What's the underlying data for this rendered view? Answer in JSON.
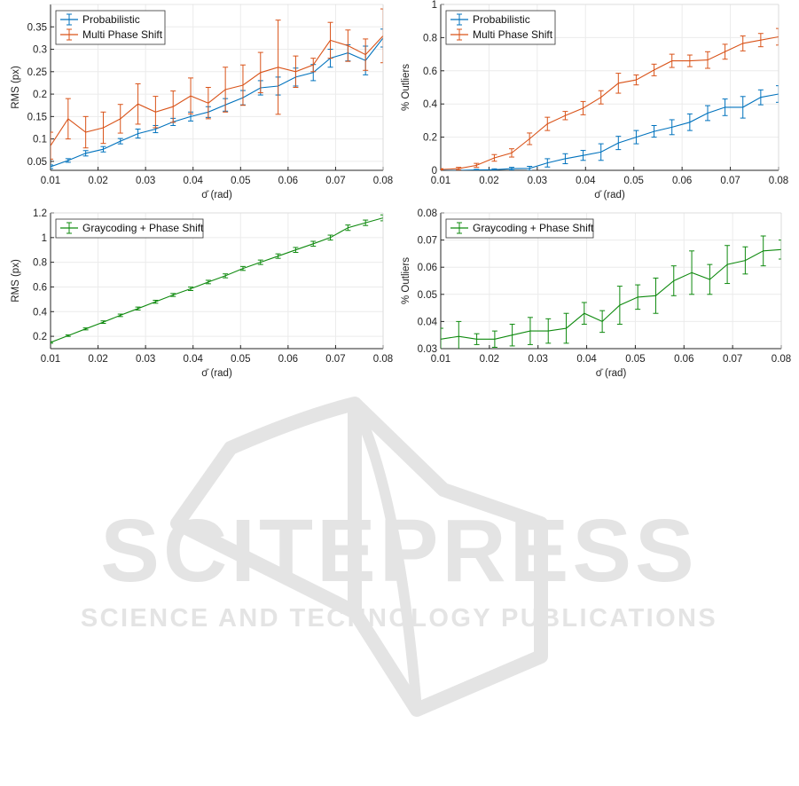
{
  "watermark": {
    "main": "SCITEPRESS",
    "sub": "SCIENCE AND TECHNOLOGY PUBLICATIONS",
    "color": "#e4e4e4"
  },
  "colors": {
    "probabilistic": "#0072BD",
    "multi_phase": "#D95319",
    "graycoding": "#0f8a0f",
    "grid": "#ebebeb",
    "axis": "#262626"
  },
  "chart_data": [
    {
      "type": "line",
      "xlabel": "σ̄ (rad)",
      "ylabel": "RMS (px)",
      "xlim": [
        0.01,
        0.08
      ],
      "ylim": [
        0.03,
        0.4
      ],
      "xticks": [
        0.01,
        0.02,
        0.03,
        0.04,
        0.05,
        0.06,
        0.07,
        0.08
      ],
      "xtick_labels": [
        "0.01",
        "0.02",
        "0.03",
        "0.04",
        "0.05",
        "0.06",
        "0.07",
        "0.08"
      ],
      "yticks": [
        0.05,
        0.1,
        0.15,
        0.2,
        0.25,
        0.3,
        0.35
      ],
      "ytick_labels": [
        "0.05",
        "0.1",
        "0.15",
        "0.2",
        "0.25",
        "0.3",
        "0.35"
      ],
      "grid": true,
      "legend": "top-left",
      "x": [
        0.01,
        0.0137,
        0.0174,
        0.0211,
        0.0247,
        0.0284,
        0.0321,
        0.0358,
        0.0395,
        0.0432,
        0.0468,
        0.0505,
        0.0542,
        0.0579,
        0.0616,
        0.0653,
        0.0689,
        0.0726,
        0.0763,
        0.08
      ],
      "series": [
        {
          "name": "Probabilistic",
          "color": "#0072BD",
          "values": [
            0.038,
            0.052,
            0.068,
            0.077,
            0.095,
            0.112,
            0.122,
            0.138,
            0.15,
            0.16,
            0.176,
            0.192,
            0.214,
            0.218,
            0.238,
            0.248,
            0.28,
            0.292,
            0.275,
            0.325
          ],
          "errors": [
            0.004,
            0.004,
            0.006,
            0.006,
            0.006,
            0.01,
            0.008,
            0.008,
            0.01,
            0.012,
            0.014,
            0.016,
            0.016,
            0.02,
            0.02,
            0.018,
            0.02,
            0.018,
            0.032,
            0.02
          ]
        },
        {
          "name": "Multi Phase Shift",
          "color": "#D95319",
          "values": [
            0.085,
            0.145,
            0.115,
            0.125,
            0.145,
            0.178,
            0.16,
            0.172,
            0.196,
            0.18,
            0.21,
            0.22,
            0.248,
            0.26,
            0.25,
            0.265,
            0.32,
            0.308,
            0.288,
            0.33
          ],
          "errors": [
            0.03,
            0.045,
            0.035,
            0.035,
            0.032,
            0.045,
            0.035,
            0.035,
            0.04,
            0.035,
            0.05,
            0.045,
            0.045,
            0.105,
            0.035,
            0.015,
            0.04,
            0.035,
            0.035,
            0.06
          ]
        }
      ]
    },
    {
      "type": "line",
      "xlabel": "σ̄ (rad)",
      "ylabel": "% Outliers",
      "xlim": [
        0.01,
        0.08
      ],
      "ylim": [
        0,
        1
      ],
      "xticks": [
        0.01,
        0.02,
        0.03,
        0.04,
        0.05,
        0.06,
        0.07,
        0.08
      ],
      "xtick_labels": [
        "0.01",
        "0.02",
        "0.03",
        "0.04",
        "0.05",
        "0.06",
        "0.07",
        "0.08"
      ],
      "yticks": [
        0,
        0.2,
        0.4,
        0.6,
        0.8,
        1
      ],
      "ytick_labels": [
        "0",
        "0.2",
        "0.4",
        "0.6",
        "0.8",
        "1"
      ],
      "grid": true,
      "legend": "top-left",
      "x": [
        0.01,
        0.0137,
        0.0174,
        0.0211,
        0.0247,
        0.0284,
        0.0321,
        0.0358,
        0.0395,
        0.0432,
        0.0468,
        0.0505,
        0.0542,
        0.0579,
        0.0616,
        0.0653,
        0.0689,
        0.0726,
        0.0763,
        0.08
      ],
      "series": [
        {
          "name": "Probabilistic",
          "color": "#0072BD",
          "values": [
            0.0,
            0.0,
            0.002,
            0.004,
            0.01,
            0.012,
            0.045,
            0.07,
            0.09,
            0.11,
            0.165,
            0.2,
            0.235,
            0.26,
            0.29,
            0.345,
            0.38,
            0.38,
            0.44,
            0.46
          ],
          "errors": [
            0.003,
            0.003,
            0.004,
            0.005,
            0.008,
            0.012,
            0.025,
            0.03,
            0.03,
            0.05,
            0.04,
            0.04,
            0.035,
            0.045,
            0.05,
            0.045,
            0.05,
            0.065,
            0.045,
            0.05
          ]
        },
        {
          "name": "Multi Phase Shift",
          "color": "#D95319",
          "values": [
            0.005,
            0.01,
            0.03,
            0.075,
            0.105,
            0.19,
            0.28,
            0.33,
            0.375,
            0.44,
            0.525,
            0.545,
            0.605,
            0.66,
            0.66,
            0.665,
            0.715,
            0.765,
            0.785,
            0.805
          ],
          "errors": [
            0.005,
            0.008,
            0.012,
            0.02,
            0.025,
            0.035,
            0.04,
            0.025,
            0.04,
            0.04,
            0.06,
            0.03,
            0.035,
            0.04,
            0.035,
            0.05,
            0.045,
            0.045,
            0.04,
            0.05
          ]
        }
      ]
    },
    {
      "type": "line",
      "xlabel": "σ̄ (rad)",
      "ylabel": "RMS (px)",
      "xlim": [
        0.01,
        0.08
      ],
      "ylim": [
        0.1,
        1.2
      ],
      "xticks": [
        0.01,
        0.02,
        0.03,
        0.04,
        0.05,
        0.06,
        0.07,
        0.08
      ],
      "xtick_labels": [
        "0.01",
        "0.02",
        "0.03",
        "0.04",
        "0.05",
        "0.06",
        "0.07",
        "0.08"
      ],
      "yticks": [
        0.2,
        0.4,
        0.6,
        0.8,
        1,
        1.2
      ],
      "ytick_labels": [
        "0.2",
        "0.4",
        "0.6",
        "0.8",
        "1",
        "1.2"
      ],
      "grid": true,
      "legend": "top-left",
      "x": [
        0.01,
        0.0137,
        0.0174,
        0.0211,
        0.0247,
        0.0284,
        0.0321,
        0.0358,
        0.0395,
        0.0432,
        0.0468,
        0.0505,
        0.0542,
        0.0579,
        0.0616,
        0.0653,
        0.0689,
        0.0726,
        0.0763,
        0.08
      ],
      "series": [
        {
          "name": "Graycoding + Phase Shift",
          "color": "#0f8a0f",
          "values": [
            0.15,
            0.205,
            0.26,
            0.315,
            0.37,
            0.425,
            0.48,
            0.535,
            0.585,
            0.64,
            0.69,
            0.75,
            0.8,
            0.85,
            0.9,
            0.95,
            1.0,
            1.08,
            1.12,
            1.16
          ],
          "errors": [
            0.006,
            0.006,
            0.008,
            0.01,
            0.01,
            0.012,
            0.012,
            0.012,
            0.014,
            0.014,
            0.016,
            0.016,
            0.018,
            0.018,
            0.02,
            0.02,
            0.02,
            0.022,
            0.022,
            0.024
          ]
        }
      ]
    },
    {
      "type": "line",
      "xlabel": "σ̄ (rad)",
      "ylabel": "% Outliers",
      "xlim": [
        0.01,
        0.08
      ],
      "ylim": [
        0.03,
        0.08
      ],
      "xticks": [
        0.01,
        0.02,
        0.03,
        0.04,
        0.05,
        0.06,
        0.07,
        0.08
      ],
      "xtick_labels": [
        "0.01",
        "0.02",
        "0.03",
        "0.04",
        "0.05",
        "0.06",
        "0.07",
        "0.08"
      ],
      "yticks": [
        0.03,
        0.04,
        0.05,
        0.06,
        0.07,
        0.08
      ],
      "ytick_labels": [
        "0.03",
        "0.04",
        "0.05",
        "0.06",
        "0.07",
        "0.08"
      ],
      "grid": true,
      "legend": "top-left",
      "x": [
        0.01,
        0.0137,
        0.0174,
        0.0211,
        0.0247,
        0.0284,
        0.0321,
        0.0358,
        0.0395,
        0.0432,
        0.0468,
        0.0505,
        0.0542,
        0.0579,
        0.0616,
        0.0653,
        0.0689,
        0.0726,
        0.0763,
        0.08
      ],
      "series": [
        {
          "name": "Graycoding + Phase Shift",
          "color": "#0f8a0f",
          "values": [
            0.0335,
            0.0345,
            0.0335,
            0.0335,
            0.035,
            0.0365,
            0.0365,
            0.0375,
            0.043,
            0.04,
            0.046,
            0.049,
            0.0495,
            0.055,
            0.058,
            0.0555,
            0.061,
            0.0625,
            0.066,
            0.0665
          ],
          "errors": [
            0.004,
            0.0055,
            0.002,
            0.003,
            0.004,
            0.005,
            0.0045,
            0.0055,
            0.004,
            0.004,
            0.007,
            0.0045,
            0.0065,
            0.0055,
            0.008,
            0.0055,
            0.007,
            0.005,
            0.0055,
            0.0035
          ]
        }
      ]
    }
  ]
}
